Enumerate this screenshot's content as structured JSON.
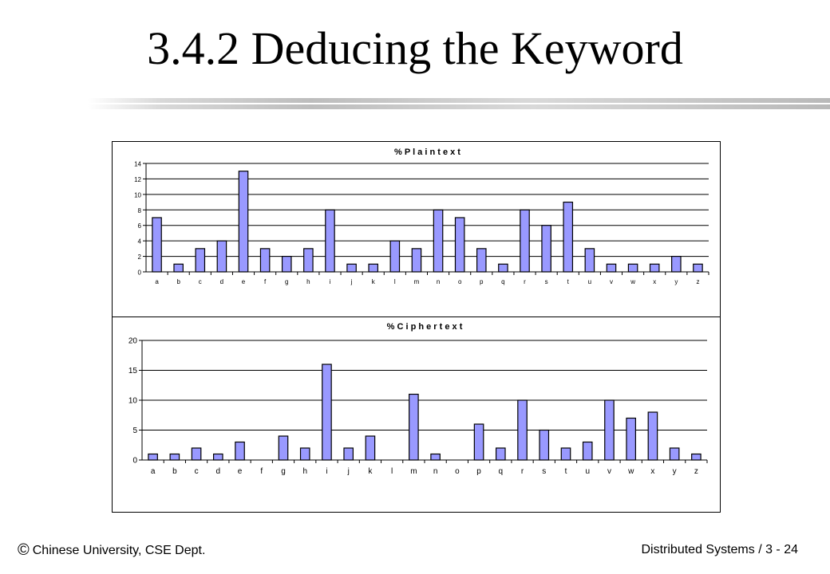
{
  "slide": {
    "title": "3.4.2 Deducing the Keyword"
  },
  "footer": {
    "copyright_symbol": "©",
    "left": "Chinese University, CSE Dept.",
    "right": "Distributed Systems / 3 - 24"
  },
  "chart_data": [
    {
      "type": "bar",
      "title": "% P l a i n t e x t",
      "categories": [
        "a",
        "b",
        "c",
        "d",
        "e",
        "f",
        "g",
        "h",
        "i",
        "j",
        "k",
        "l",
        "m",
        "n",
        "o",
        "p",
        "q",
        "r",
        "s",
        "t",
        "u",
        "v",
        "w",
        "x",
        "y",
        "z"
      ],
      "values": [
        7,
        1,
        3,
        4,
        13,
        3,
        2,
        3,
        8,
        1,
        1,
        4,
        3,
        8,
        7,
        3,
        1,
        8,
        6,
        9,
        3,
        1,
        1,
        1,
        2,
        1
      ],
      "ylim": [
        0,
        14
      ],
      "yticks": [
        0,
        2,
        4,
        6,
        8,
        10,
        12,
        14
      ],
      "grid": true,
      "bar_color": "#9999ff"
    },
    {
      "type": "bar",
      "title": "% C i p h e r t e x t",
      "categories": [
        "a",
        "b",
        "c",
        "d",
        "e",
        "f",
        "g",
        "h",
        "i",
        "j",
        "k",
        "l",
        "m",
        "n",
        "o",
        "p",
        "q",
        "r",
        "s",
        "t",
        "u",
        "v",
        "w",
        "x",
        "y",
        "z"
      ],
      "values": [
        1,
        1,
        2,
        1,
        3,
        0,
        4,
        2,
        16,
        2,
        4,
        0,
        11,
        1,
        0,
        6,
        2,
        10,
        5,
        2,
        3,
        10,
        7,
        8,
        2,
        1
      ],
      "ylim": [
        0,
        20
      ],
      "yticks": [
        0,
        5,
        10,
        15,
        20
      ],
      "grid": true,
      "bar_color": "#9999ff"
    }
  ]
}
